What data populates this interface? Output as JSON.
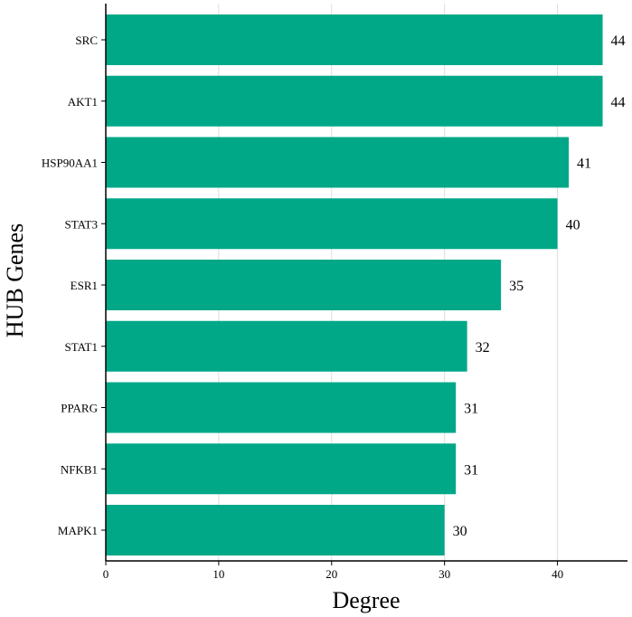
{
  "chart_data": {
    "type": "bar",
    "orientation": "horizontal",
    "categories": [
      "SRC",
      "AKT1",
      "HSP90AA1",
      "STAT3",
      "ESR1",
      "STAT1",
      "PPARG",
      "NFKB1",
      "MAPK1"
    ],
    "values": [
      44,
      44,
      41,
      40,
      35,
      32,
      31,
      31,
      30
    ],
    "data_labels": [
      "44",
      "44",
      "41",
      "40",
      "35",
      "32",
      "31",
      "31",
      "30"
    ],
    "xlabel": "Degree",
    "ylabel": "HUB Genes",
    "xlim": [
      0,
      46.2
    ],
    "xticks": [
      0,
      10,
      20,
      30,
      40
    ],
    "xtick_labels": [
      "0",
      "10",
      "20",
      "30",
      "40"
    ],
    "grid": "vertical",
    "bar_color": "#00A887",
    "grid_color": "#dddddd"
  }
}
